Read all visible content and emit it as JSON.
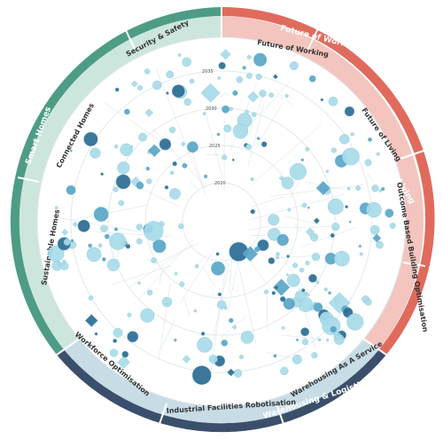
{
  "diagram": {
    "outer_categories": [
      {
        "label": "Future of Working",
        "color": "#E06B5D"
      },
      {
        "label": "Future of Work & Living",
        "color": "#E06B5D"
      },
      {
        "label": "Warehousing & Logistics",
        "color": "#3A4F6B"
      },
      {
        "label": "Smart Homes",
        "color": "#4E9C86"
      }
    ],
    "inner_segments": [
      {
        "label": "Security & Safety",
        "color": "#CDE6DD"
      },
      {
        "label": "Future of Working",
        "color": "#F3C5BE"
      },
      {
        "label": "Future of Living",
        "color": "#F3C5BE"
      },
      {
        "label": "Outcome Based Building Optimisation",
        "color": "#F3C5BE"
      },
      {
        "label": "Warehousing As A Service",
        "color": "#C8DCE6"
      },
      {
        "label": "Industrial Facilities Robotisation",
        "color": "#C8DCE6"
      },
      {
        "label": "Workforce Optimisation",
        "color": "#C8DCE6"
      },
      {
        "label": "Sustainable Homes",
        "color": "#CDE6DD"
      },
      {
        "label": "Connected Homes",
        "color": "#CDE6DD"
      }
    ],
    "ring_year_labels": [
      "2020",
      "2025",
      "2030",
      "2035"
    ],
    "node_colors": {
      "light": "#A9DCEA",
      "mid": "#5AA6C7",
      "dark": "#2C6C94",
      "outline": "#7FBFD6"
    }
  }
}
